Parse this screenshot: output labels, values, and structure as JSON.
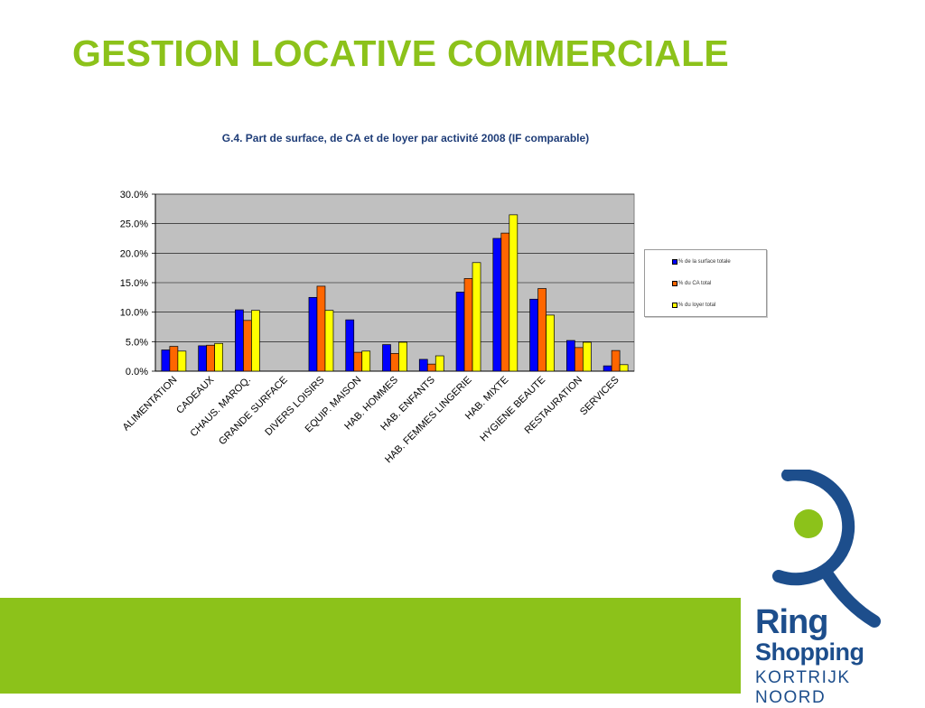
{
  "slide": {
    "title": "GESTION LOCATIVE COMMERCIALE"
  },
  "chart_data": {
    "type": "bar",
    "title": "G.4. Part de surface, de CA et de loyer par activité 2008 (IF comparable)",
    "xlabel": "",
    "ylabel": "",
    "ylim": [
      0,
      0.3
    ],
    "yticks": [
      "0.0%",
      "5.0%",
      "10.0%",
      "15.0%",
      "20.0%",
      "25.0%",
      "30.0%"
    ],
    "grid": true,
    "legend_position": "right",
    "categories": [
      "ALIMENTATION",
      "CADEAUX",
      "CHAUS. MAROQ.",
      "GRANDE SURFACE",
      "DIVERS LOISIRS",
      "EQUIP. MAISON",
      "HAB. HOMMES",
      "HAB. ENFANTS",
      "HAB. FEMMES LINGERIE",
      "HAB. MIXTE",
      "HYGIENE BEAUTE",
      "RESTAURATION",
      "SERVICES"
    ],
    "series": [
      {
        "name": "% de la surface totale",
        "color": "#0000ff",
        "values": [
          0.036,
          0.043,
          0.104,
          0.0,
          0.125,
          0.087,
          0.045,
          0.02,
          0.134,
          0.225,
          0.122,
          0.052,
          0.009
        ]
      },
      {
        "name": "% du CA total",
        "color": "#ff6600",
        "values": [
          0.042,
          0.044,
          0.086,
          0.0,
          0.144,
          0.032,
          0.03,
          0.012,
          0.157,
          0.234,
          0.14,
          0.04,
          0.035
        ]
      },
      {
        "name": "% du loyer total",
        "color": "#ffff00",
        "values": [
          0.034,
          0.047,
          0.103,
          0.0,
          0.103,
          0.034,
          0.049,
          0.026,
          0.184,
          0.265,
          0.095,
          0.049,
          0.011
        ]
      }
    ]
  },
  "logo": {
    "line1": "Ring",
    "line2": "Shopping",
    "line3": "KORTRIJK NOORD"
  },
  "colors": {
    "title_green": "#8cc21a",
    "plot_background": "#c0c0c0",
    "brand_blue": "#1d4e8c"
  }
}
